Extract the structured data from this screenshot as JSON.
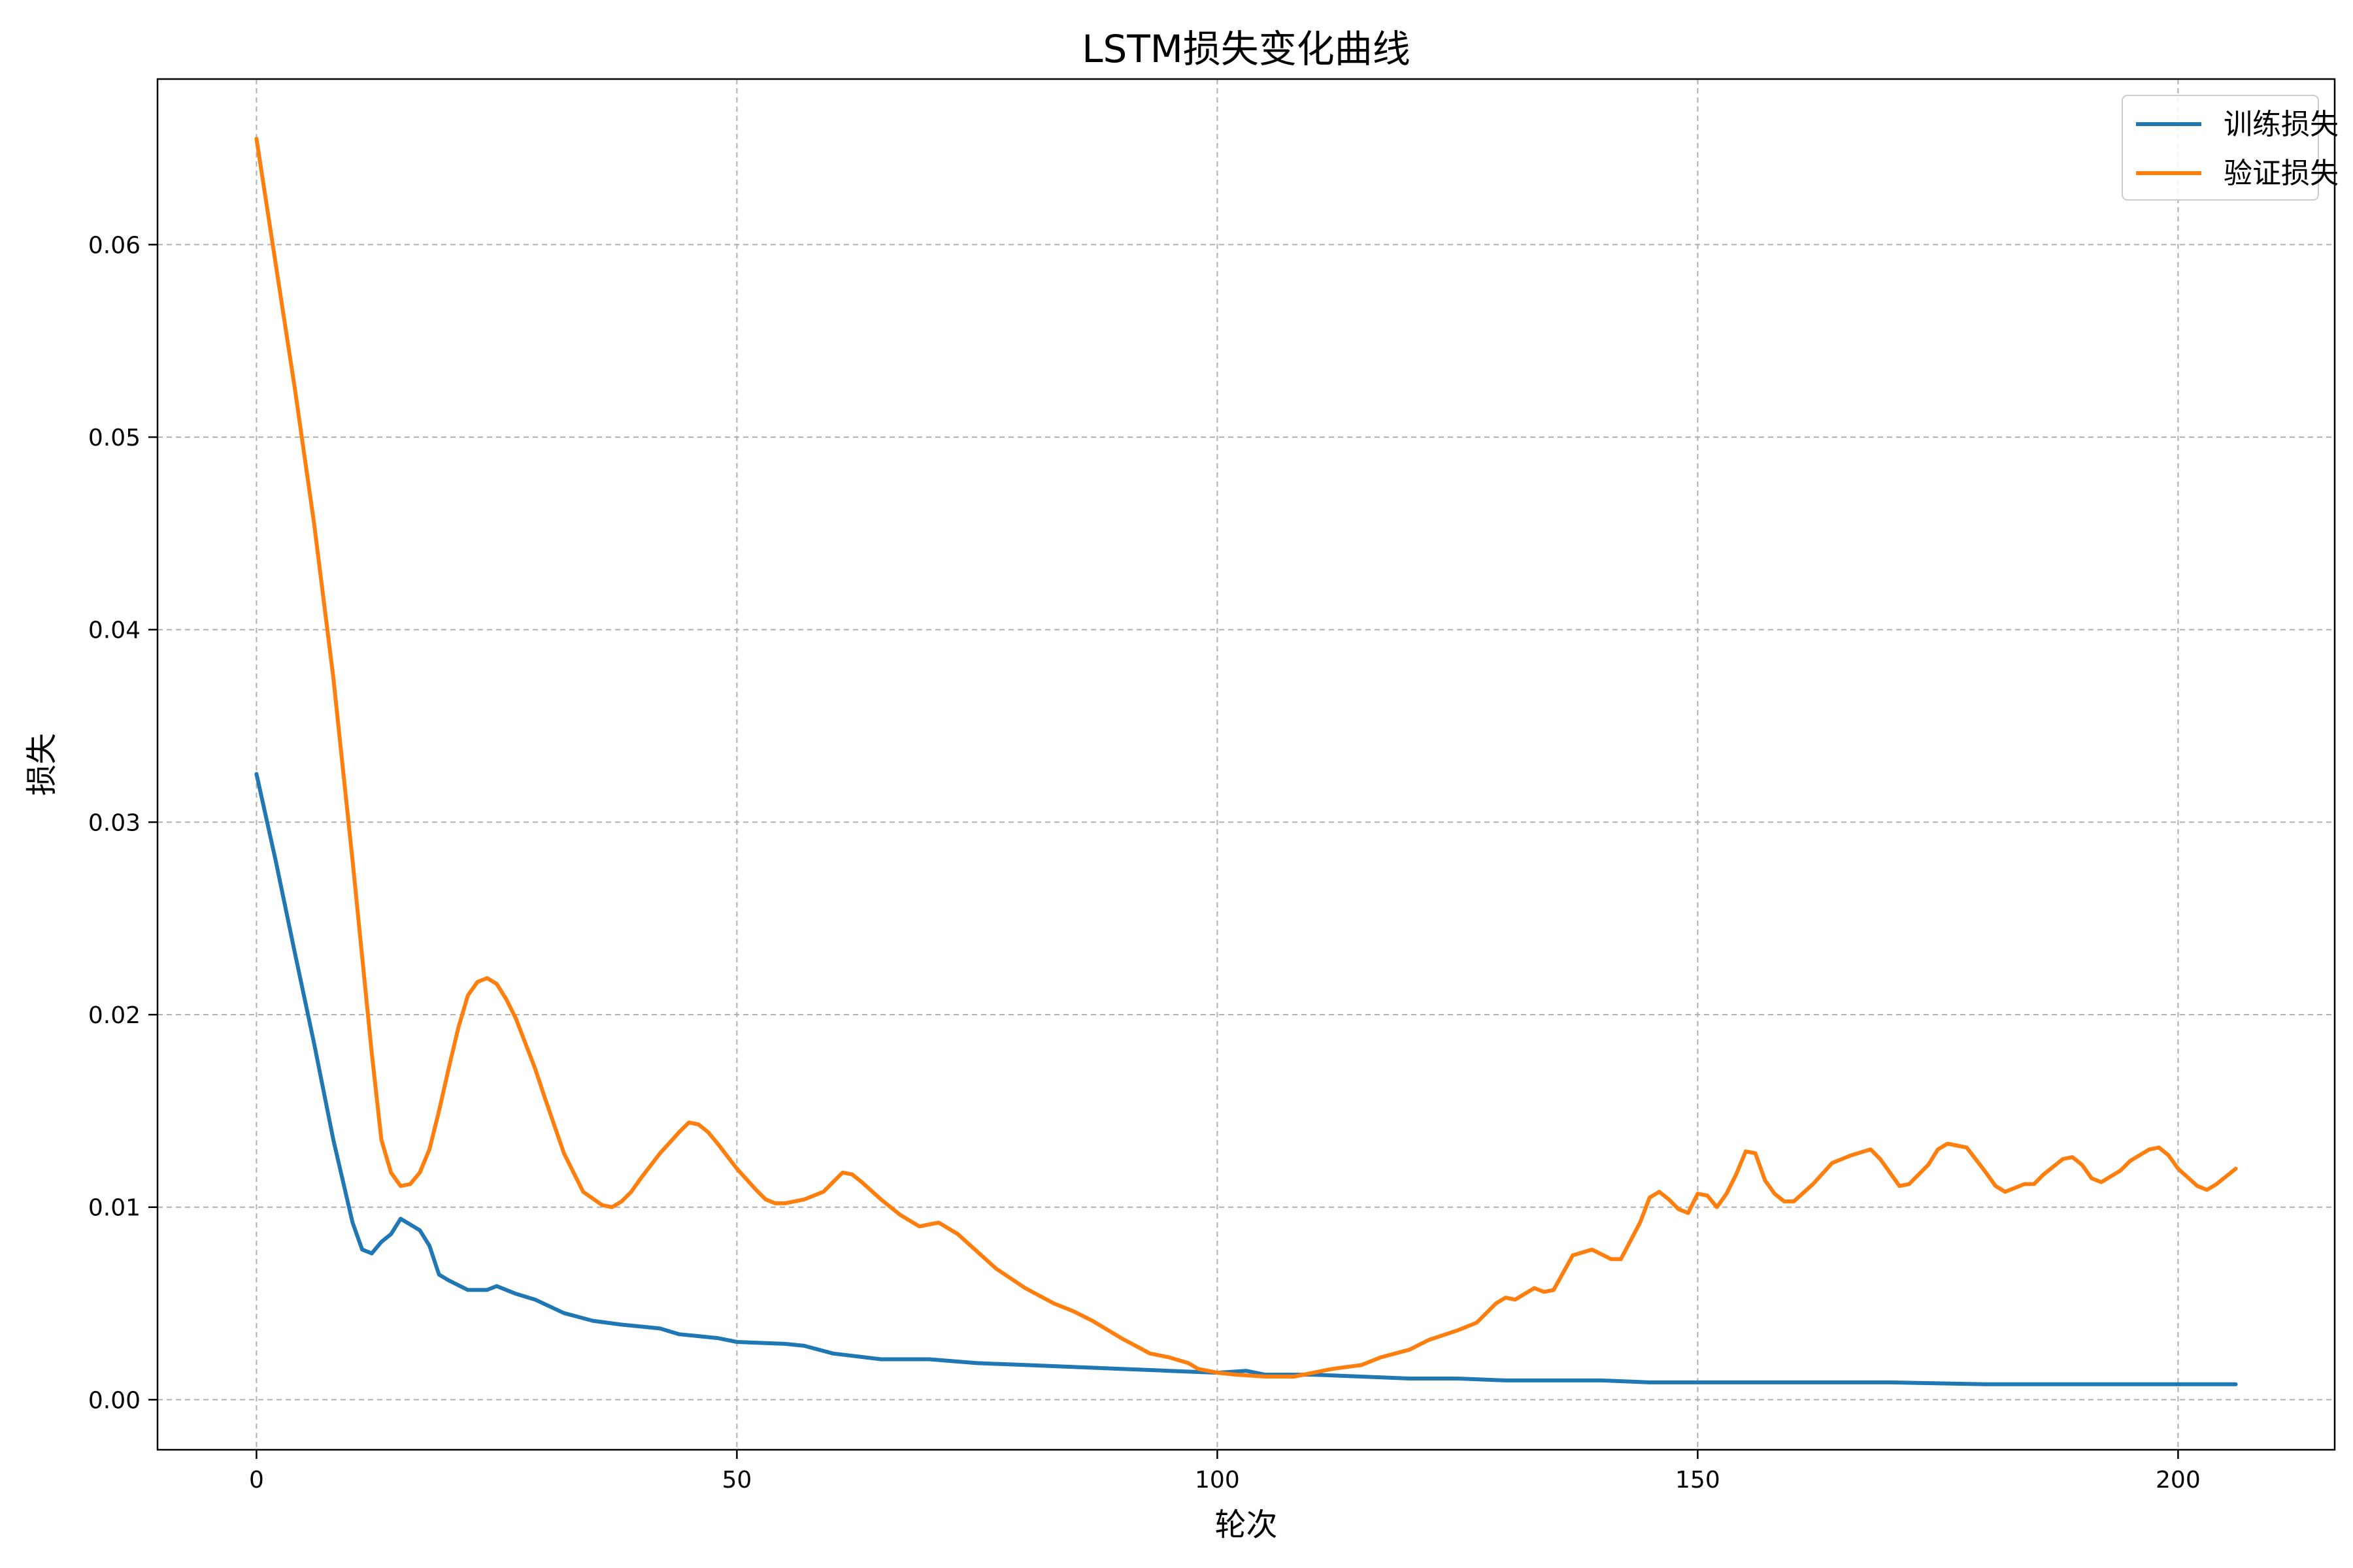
{
  "chart_data": {
    "type": "line",
    "title": "LSTM损失变化曲线",
    "xlabel": "轮次",
    "ylabel": "损失",
    "xlim": [
      -10.3,
      216.3
    ],
    "ylim": [
      -0.0026,
      0.0686
    ],
    "x_ticks": [
      "0",
      "50",
      "100",
      "150",
      "200"
    ],
    "y_ticks": [
      "0.00",
      "0.01",
      "0.02",
      "0.03",
      "0.04",
      "0.05",
      "0.06"
    ],
    "grid": true,
    "legend_position": "top-right",
    "series": [
      {
        "name": "训练损失",
        "color": "#1f77b4",
        "x": [
          0,
          2,
          4,
          6,
          8,
          10,
          11,
          12,
          13,
          14,
          15,
          17,
          18,
          19,
          20,
          22,
          24,
          25,
          27,
          29,
          32,
          35,
          38,
          40,
          42,
          44,
          46,
          48,
          50,
          55,
          57,
          60,
          65,
          70,
          75,
          80,
          85,
          90,
          95,
          100,
          103,
          105,
          110,
          115,
          120,
          125,
          130,
          135,
          140,
          145,
          150,
          160,
          170,
          180,
          190,
          200,
          206
        ],
        "y": [
          0.0325,
          0.028,
          0.0232,
          0.0185,
          0.0135,
          0.0092,
          0.0078,
          0.0076,
          0.0082,
          0.0086,
          0.0094,
          0.0088,
          0.008,
          0.0065,
          0.0062,
          0.0057,
          0.0057,
          0.0059,
          0.0055,
          0.0052,
          0.0045,
          0.0041,
          0.0039,
          0.0038,
          0.0037,
          0.0034,
          0.0033,
          0.0032,
          0.003,
          0.0029,
          0.0028,
          0.0024,
          0.0021,
          0.0021,
          0.0019,
          0.0018,
          0.0017,
          0.0016,
          0.0015,
          0.0014,
          0.0015,
          0.0013,
          0.0013,
          0.0012,
          0.0011,
          0.0011,
          0.001,
          0.001,
          0.001,
          0.0009,
          0.0009,
          0.0009,
          0.0009,
          0.0008,
          0.0008,
          0.0008,
          0.0008
        ]
      },
      {
        "name": "验证损失",
        "color": "#ff7f0e",
        "x": [
          0,
          2,
          4,
          6,
          8,
          10,
          12,
          13,
          14,
          15,
          16,
          17,
          18,
          19,
          20,
          21,
          22,
          23,
          24,
          25,
          26,
          27,
          28,
          29,
          30,
          32,
          34,
          36,
          37,
          38,
          39,
          40,
          42,
          44,
          45,
          46,
          47,
          48,
          50,
          52,
          53,
          54,
          55,
          57,
          59,
          60,
          61,
          62,
          63,
          65,
          67,
          69,
          70,
          71,
          72,
          73,
          75,
          77,
          80,
          83,
          85,
          87,
          90,
          93,
          95,
          97,
          98,
          100,
          102,
          105,
          108,
          110,
          112,
          115,
          117,
          120,
          122,
          125,
          127,
          129,
          130,
          131,
          133,
          134,
          135,
          137,
          139,
          141,
          142,
          144,
          145,
          146,
          147,
          148,
          149,
          150,
          151,
          152,
          153,
          154,
          155,
          156,
          157,
          158,
          159,
          160,
          162,
          164,
          165,
          166,
          168,
          169,
          171,
          172,
          174,
          175,
          176,
          178,
          180,
          181,
          182,
          184,
          185,
          186,
          188,
          189,
          190,
          191,
          192,
          194,
          195,
          197,
          198,
          199,
          200,
          202,
          203,
          204,
          206
        ],
        "y": [
          0.0655,
          0.059,
          0.0525,
          0.0455,
          0.0375,
          0.028,
          0.018,
          0.0135,
          0.0118,
          0.0111,
          0.0112,
          0.0118,
          0.013,
          0.015,
          0.0172,
          0.0193,
          0.021,
          0.0217,
          0.0219,
          0.0216,
          0.0208,
          0.0198,
          0.0185,
          0.0172,
          0.0157,
          0.0128,
          0.0108,
          0.0101,
          0.01,
          0.0103,
          0.0108,
          0.0115,
          0.0128,
          0.0139,
          0.0144,
          0.0143,
          0.0139,
          0.0133,
          0.012,
          0.0109,
          0.0104,
          0.0102,
          0.0102,
          0.0104,
          0.0108,
          0.0113,
          0.0118,
          0.0117,
          0.0113,
          0.0104,
          0.0096,
          0.009,
          0.0091,
          0.0092,
          0.0089,
          0.0086,
          0.0077,
          0.0068,
          0.0058,
          0.005,
          0.0046,
          0.0041,
          0.0032,
          0.0024,
          0.0022,
          0.0019,
          0.0016,
          0.0014,
          0.0013,
          0.0012,
          0.0012,
          0.0014,
          0.0016,
          0.0018,
          0.0022,
          0.0026,
          0.0031,
          0.0036,
          0.004,
          0.005,
          0.0053,
          0.0052,
          0.0058,
          0.0056,
          0.0057,
          0.0075,
          0.0078,
          0.0073,
          0.0073,
          0.0092,
          0.0105,
          0.0108,
          0.0104,
          0.0099,
          0.0097,
          0.0107,
          0.0106,
          0.01,
          0.0107,
          0.0117,
          0.0129,
          0.0128,
          0.0114,
          0.0107,
          0.0103,
          0.0103,
          0.0112,
          0.0123,
          0.0125,
          0.0127,
          0.013,
          0.0125,
          0.0111,
          0.0112,
          0.0122,
          0.013,
          0.0133,
          0.0131,
          0.0118,
          0.0111,
          0.0108,
          0.0112,
          0.0112,
          0.0117,
          0.0125,
          0.0126,
          0.0122,
          0.0115,
          0.0113,
          0.0119,
          0.0124,
          0.013,
          0.0131,
          0.0127,
          0.012,
          0.0111,
          0.0109,
          0.0112,
          0.012
        ]
      }
    ]
  }
}
